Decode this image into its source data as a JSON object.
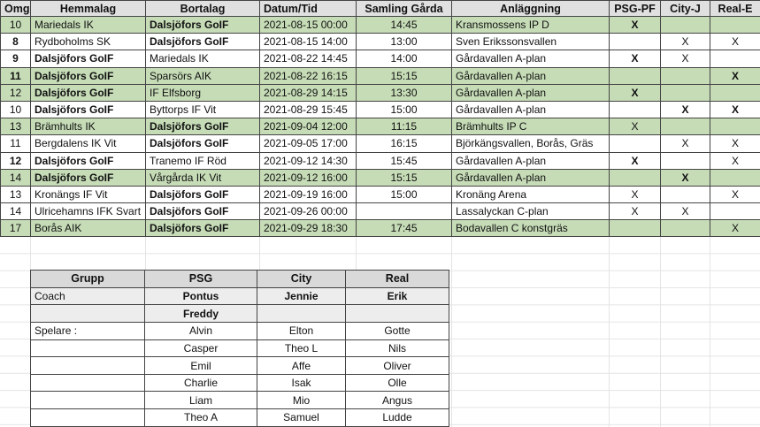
{
  "colors": {
    "row_green": "#c6dcb7",
    "schedule_header_gray": "#e0e0e0",
    "group_header_gray": "#d9d9d9",
    "coach_row_gray": "#ededed",
    "table_border": "#444444",
    "faint_gridline": "#e4e4e4"
  },
  "schedule": {
    "headers": [
      "Omg",
      "Hemmalag",
      "Bortalag",
      "Datum/Tid",
      "Samling Gårda",
      "Anläggning",
      "PSG-PF",
      "City-J",
      "Real-E"
    ],
    "rows": [
      {
        "omg": "10",
        "home": "Mariedals IK",
        "away": "Dalsjöfors GoIF",
        "datetime": "2021-08-15 00:00",
        "meet": "14:45",
        "venue": "Kransmossens IP D",
        "psg_pf": "X",
        "city_j": "",
        "real_e": "",
        "green": true,
        "bold": [
          "away",
          "psg_pf"
        ]
      },
      {
        "omg": "8",
        "home": "Rydboholms SK",
        "away": "Dalsjöfors GoIF",
        "datetime": "2021-08-15 14:00",
        "meet": "13:00",
        "venue": "Sven Erikssonsvallen",
        "psg_pf": "",
        "city_j": "X",
        "real_e": "X",
        "green": false,
        "bold": [
          "omg",
          "away"
        ]
      },
      {
        "omg": "9",
        "home": "Dalsjöfors GoIF",
        "away": "Mariedals IK",
        "datetime": "2021-08-22 14:45",
        "meet": "14:00",
        "venue": "Gårdavallen A-plan",
        "psg_pf": "X",
        "city_j": "X",
        "real_e": "",
        "green": false,
        "bold": [
          "omg",
          "home",
          "psg_pf"
        ]
      },
      {
        "omg": "11",
        "home": "Dalsjöfors GoIF",
        "away": "Sparsörs AIK",
        "datetime": "2021-08-22 16:15",
        "meet": "15:15",
        "venue": "Gårdavallen A-plan",
        "psg_pf": "",
        "city_j": "",
        "real_e": "X",
        "green": true,
        "bold": [
          "omg",
          "home",
          "real_e"
        ]
      },
      {
        "omg": "12",
        "home": "Dalsjöfors GoIF",
        "away": "IF Elfsborg",
        "datetime": "2021-08-29 14:15",
        "meet": "13:30",
        "venue": "Gårdavallen A-plan",
        "psg_pf": "X",
        "city_j": "",
        "real_e": "",
        "green": true,
        "bold": [
          "home",
          "psg_pf"
        ]
      },
      {
        "omg": "10",
        "home": "Dalsjöfors GoIF",
        "away": "Byttorps IF Vit",
        "datetime": "2021-08-29 15:45",
        "meet": "15:00",
        "venue": "Gårdavallen A-plan",
        "psg_pf": "",
        "city_j": "X",
        "real_e": "X",
        "green": false,
        "bold": [
          "home",
          "city_j",
          "real_e"
        ]
      },
      {
        "omg": "13",
        "home": "Brämhults IK",
        "away": "Dalsjöfors GoIF",
        "datetime": "2021-09-04 12:00",
        "meet": "11:15",
        "venue": "Brämhults IP C",
        "psg_pf": "X",
        "city_j": "",
        "real_e": "",
        "green": true,
        "bold": [
          "away"
        ]
      },
      {
        "omg": "11",
        "home": "Bergdalens IK Vit",
        "away": "Dalsjöfors GoIF",
        "datetime": "2021-09-05 17:00",
        "meet": "16:15",
        "venue": "Björkängsvallen, Borås, Gräs",
        "psg_pf": "",
        "city_j": "X",
        "real_e": "X",
        "green": false,
        "bold": [
          "away"
        ]
      },
      {
        "omg": "12",
        "home": "Dalsjöfors GoIF",
        "away": "Tranemo IF Röd",
        "datetime": "2021-09-12 14:30",
        "meet": "15:45",
        "venue": "Gårdavallen A-plan",
        "psg_pf": "X",
        "city_j": "",
        "real_e": "X",
        "green": false,
        "bold": [
          "omg",
          "home",
          "psg_pf"
        ]
      },
      {
        "omg": "14",
        "home": "Dalsjöfors GoIF",
        "away": "Vårgårda IK Vit",
        "datetime": "2021-09-12 16:00",
        "meet": "15:15",
        "venue": "Gårdavallen A-plan",
        "psg_pf": "",
        "city_j": "X",
        "real_e": "",
        "green": true,
        "bold": [
          "home",
          "city_j"
        ]
      },
      {
        "omg": "13",
        "home": "Kronängs IF Vit",
        "away": "Dalsjöfors GoIF",
        "datetime": "2021-09-19 16:00",
        "meet": "15:00",
        "venue": "Kronäng Arena",
        "psg_pf": "X",
        "city_j": "",
        "real_e": "X",
        "green": false,
        "bold": [
          "away"
        ]
      },
      {
        "omg": "14",
        "home": "Ulricehamns IFK Svart",
        "away": "Dalsjöfors GoIF",
        "datetime": "2021-09-26 00:00",
        "meet": "",
        "venue": "Lassalyckan C-plan",
        "psg_pf": "X",
        "city_j": "X",
        "real_e": "",
        "green": false,
        "bold": [
          "away"
        ]
      },
      {
        "omg": "17",
        "home": "Borås AIK",
        "away": "Dalsjöfors GoIF",
        "datetime": "2021-09-29 18:30",
        "meet": "17:45",
        "venue": "Bodavallen C konstgräs",
        "psg_pf": "",
        "city_j": "",
        "real_e": "X",
        "green": true,
        "bold": [
          "away"
        ]
      }
    ]
  },
  "groups": {
    "headers": [
      "Grupp",
      "PSG",
      "City",
      "Real"
    ],
    "rows": [
      {
        "grupp": "Coach",
        "psg": "Pontus",
        "city": "Jennie",
        "real": "Erik",
        "shade": true,
        "bold": true
      },
      {
        "grupp": "",
        "psg": "Freddy",
        "city": "",
        "real": "",
        "shade": true,
        "bold": true
      },
      {
        "grupp": "Spelare :",
        "psg": "Alvin",
        "city": "Elton",
        "real": "Gotte",
        "shade": false,
        "bold": false
      },
      {
        "grupp": "",
        "psg": "Casper",
        "city": "Theo L",
        "real": "Nils",
        "shade": false,
        "bold": false
      },
      {
        "grupp": "",
        "psg": "Emil",
        "city": "Affe",
        "real": "Oliver",
        "shade": false,
        "bold": false
      },
      {
        "grupp": "",
        "psg": "Charlie",
        "city": "Isak",
        "real": "Olle",
        "shade": false,
        "bold": false
      },
      {
        "grupp": "",
        "psg": "Liam",
        "city": "Mio",
        "real": "Angus",
        "shade": false,
        "bold": false
      },
      {
        "grupp": "",
        "psg": "Theo A",
        "city": "Samuel",
        "real": "Ludde",
        "shade": false,
        "bold": false
      }
    ]
  }
}
